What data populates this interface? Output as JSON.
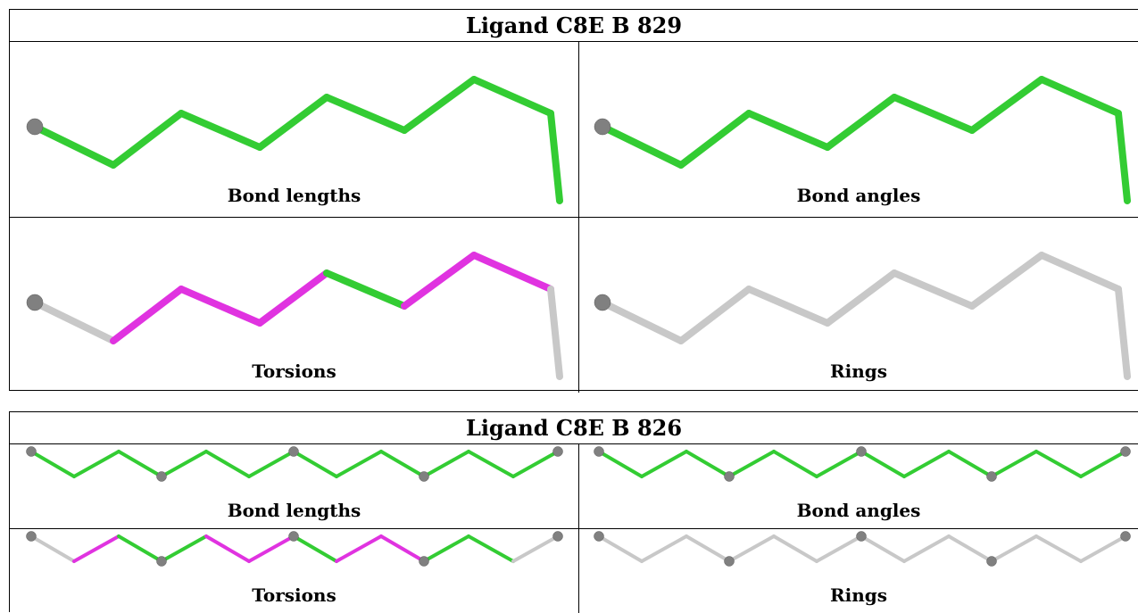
{
  "tables": [
    {
      "title": "Ligand C8E B 829",
      "panels": [
        {
          "caption": "Bond lengths",
          "style": "green"
        },
        {
          "caption": "Bond angles",
          "style": "green"
        },
        {
          "caption": "Torsions",
          "style": "torsion"
        },
        {
          "caption": "Rings",
          "style": "gray"
        }
      ]
    },
    {
      "title": "Ligand C8E B 826",
      "panels": [
        {
          "caption": "Bond lengths",
          "style": "green"
        },
        {
          "caption": "Bond angles",
          "style": "green"
        },
        {
          "caption": "Torsions",
          "style": "torsion"
        },
        {
          "caption": "Rings",
          "style": "gray"
        }
      ]
    }
  ],
  "colors": {
    "green": "#33cc33",
    "magenta": "#e033e0",
    "gray": "#c8c8c8",
    "atom": "#808080"
  }
}
